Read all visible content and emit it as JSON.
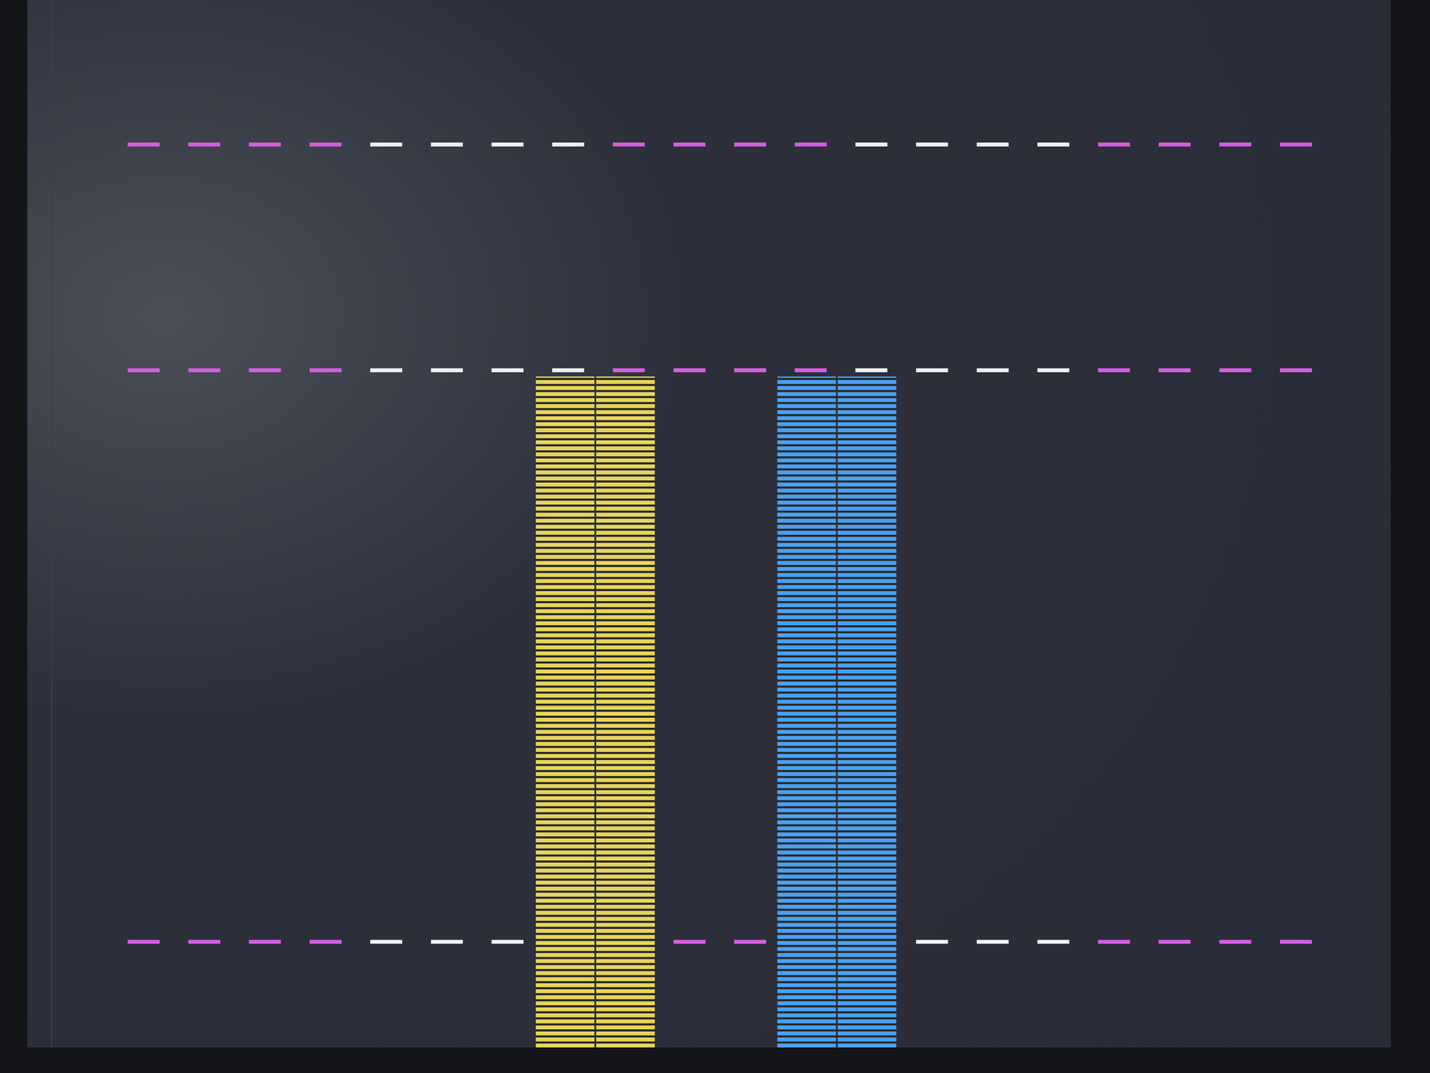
{
  "chart_data": {
    "type": "bar",
    "categories": [
      null,
      null,
      null,
      null,
      null,
      null,
      null,
      null,
      null,
      null,
      null,
      null,
      null,
      null,
      null,
      null,
      null,
      null,
      null,
      null,
      null,
      null
    ],
    "series": [
      {
        "color": "#e6d45c",
        "values": [
          null,
          null,
          null,
          null,
          null,
          null,
          null,
          null,
          74.3,
          74.3,
          null,
          null,
          null,
          null,
          null,
          null,
          null,
          null,
          null,
          null,
          null,
          null
        ]
      },
      {
        "color": "#4aa0f2",
        "values": [
          null,
          null,
          null,
          null,
          null,
          null,
          null,
          null,
          null,
          null,
          null,
          null,
          74.3,
          74.3,
          null,
          null,
          null,
          null,
          null,
          null,
          null,
          null
        ]
      }
    ],
    "ylim": [
      0,
      116
    ],
    "yticks": [
      11.7,
      75,
      100
    ],
    "grid": true,
    "tick_labels": false
  }
}
